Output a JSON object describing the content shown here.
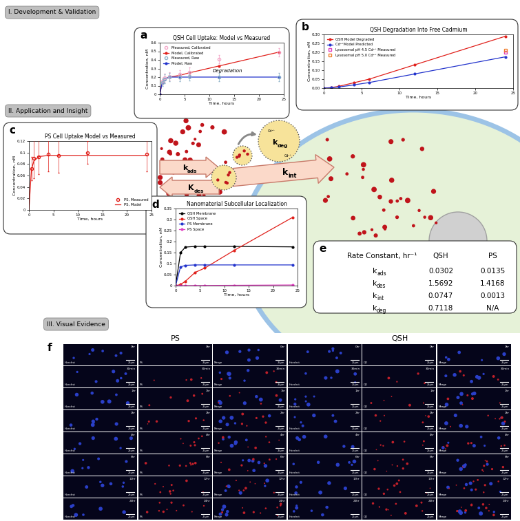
{
  "sections": [
    "I. Development & Validation",
    "II. Application and Insight",
    "III. Visual Evidence"
  ],
  "chart_data": [
    {
      "label": "a",
      "type": "line",
      "title": "QSH Cell Uptake: Model vs Measured",
      "x_label": "Time, hours",
      "y_label": "Concentration, nM",
      "xlim": [
        0,
        25
      ],
      "xticks": [
        0,
        5,
        10,
        15,
        20,
        25
      ],
      "ylim": [
        0,
        0.6
      ],
      "yticks": [
        0,
        0.1,
        0.2,
        0.3,
        0.4,
        0.5,
        0.6
      ],
      "grid": false,
      "legend": "upper left",
      "annotation": "Degradation",
      "series": [
        {
          "name": "Measured, Calibrated",
          "type": "scatter",
          "color": "#f4a6c8",
          "marker": "circle",
          "x": [
            0.5,
            1,
            2,
            4,
            6,
            12,
            24
          ],
          "values": [
            0.15,
            0.19,
            0.21,
            0.23,
            0.26,
            0.41,
            0.49
          ],
          "errors": [
            0.04,
            0.05,
            0.05,
            0.05,
            0.05,
            0.05,
            0.05
          ]
        },
        {
          "name": "Model, Calibrated",
          "type": "line",
          "color": "#e0201b",
          "marker": "circle",
          "x": [
            0,
            0.5,
            1,
            2,
            4,
            6,
            12,
            24
          ],
          "values": [
            0,
            0.14,
            0.18,
            0.2,
            0.22,
            0.25,
            0.33,
            0.49
          ]
        },
        {
          "name": "Measured, Raw",
          "type": "scatter",
          "color": "#8fb3c9",
          "marker": "circle",
          "x": [
            0.5,
            1,
            2,
            4,
            6,
            12,
            24
          ],
          "values": [
            0.14,
            0.18,
            0.2,
            0.2,
            0.21,
            0.2,
            0.2
          ],
          "errors": [
            0.04,
            0.05,
            0.05,
            0.05,
            0.05,
            0.05,
            0.05
          ]
        },
        {
          "name": "Model, Raw",
          "type": "line",
          "color": "#2233cc",
          "marker": "circle",
          "x": [
            0,
            0.5,
            1,
            2,
            4,
            6,
            12,
            24
          ],
          "values": [
            0,
            0.14,
            0.18,
            0.2,
            0.2,
            0.2,
            0.2,
            0.2
          ]
        }
      ]
    },
    {
      "label": "b",
      "type": "line",
      "title": "QSH Degradation Into Free Cadmium",
      "x_label": "Time, hours",
      "y_label": "Concentration, nM",
      "xlim": [
        0,
        25
      ],
      "xticks": [
        0,
        5,
        10,
        15,
        20,
        25
      ],
      "ylim": [
        0,
        0.3
      ],
      "yticks": [
        {
          "value": 0,
          "label": "0.00"
        },
        0.05,
        {
          "value": 0.1,
          "label": "0.10"
        },
        0.15,
        {
          "value": 0.2,
          "label": "0.20"
        },
        0.25,
        {
          "value": 0.3,
          "label": "0.30"
        }
      ],
      "grid": false,
      "legend": "upper left",
      "series": [
        {
          "name": "QSH Model Degraded",
          "type": "line",
          "color": "#e0201b",
          "marker": "circle",
          "x": [
            0,
            1,
            2,
            4,
            6,
            12,
            24
          ],
          "values": [
            0,
            0.003,
            0.01,
            0.03,
            0.05,
            0.13,
            0.29
          ]
        },
        {
          "name": "Cd²⁺Model Predicted",
          "type": "line",
          "color": "#2233cc",
          "marker": "circle",
          "x": [
            0,
            1,
            2,
            4,
            6,
            12,
            24
          ],
          "values": [
            0,
            0.002,
            0.006,
            0.018,
            0.031,
            0.079,
            0.175
          ]
        },
        {
          "name": "Lysosomal pH 4.5 Cd²⁺ Measured",
          "type": "scatter",
          "color": "#e040c0",
          "marker": "square",
          "x": [
            24
          ],
          "values": [
            0.2
          ]
        },
        {
          "name": "Lysosomal pH 5.0 Cd²⁺ Measured",
          "type": "scatter",
          "color": "#f08030",
          "marker": "square",
          "x": [
            24
          ],
          "values": [
            0.21
          ]
        }
      ]
    },
    {
      "label": "c",
      "type": "line",
      "title": "PS Cell Uptake Model vs Measured",
      "x_label": "Time, hours",
      "y_label": "Concentration, nM",
      "xlim": [
        0,
        25
      ],
      "xticks": [
        0,
        5,
        10,
        15,
        20,
        25
      ],
      "ylim": [
        0,
        0.12
      ],
      "yticks": [
        0,
        0.02,
        0.04,
        0.06,
        0.08,
        0.1,
        0.12
      ],
      "grid": false,
      "legend": "lower right",
      "series": [
        {
          "name": "PS, Measured",
          "type": "scatter",
          "color": "#e0201b",
          "marker": "circle",
          "x": [
            0.5,
            1,
            2,
            4,
            6,
            12,
            24
          ],
          "values": [
            0.072,
            0.09,
            0.093,
            0.097,
            0.095,
            0.1,
            0.097
          ],
          "errors": [
            0.02,
            0.035,
            0.03,
            0.03,
            0.03,
            0.02,
            0.03
          ]
        },
        {
          "name": "PS, Model",
          "type": "line",
          "color": "#e0201b",
          "marker": "none",
          "x": [
            0,
            0.5,
            1,
            2,
            4,
            6,
            12,
            24
          ],
          "values": [
            0,
            0.07,
            0.085,
            0.093,
            0.095,
            0.095,
            0.095,
            0.095
          ]
        }
      ]
    },
    {
      "label": "d",
      "type": "line",
      "title": "Nanomaterial Subcellular Localization",
      "x_label": "Time, hours",
      "y_label": "Concentration, nM",
      "xlim": [
        0,
        25
      ],
      "xticks": [
        0,
        5,
        10,
        15,
        20,
        25
      ],
      "ylim": [
        0,
        0.35
      ],
      "yticks": [
        0,
        0.05,
        0.1,
        0.15,
        0.2,
        0.25,
        0.3,
        0.35
      ],
      "grid": false,
      "legend": "upper left",
      "series": [
        {
          "name": "QSH Membrane",
          "type": "line",
          "color": "#000000",
          "marker": "circle",
          "x": [
            0,
            1,
            2,
            4,
            6,
            12,
            24
          ],
          "values": [
            0,
            0.15,
            0.175,
            0.178,
            0.178,
            0.178,
            0.176
          ]
        },
        {
          "name": "QSH Space",
          "type": "line",
          "color": "#e0201b",
          "marker": "circle",
          "x": [
            0,
            1,
            2,
            4,
            6,
            12,
            24
          ],
          "values": [
            0,
            0.005,
            0.02,
            0.06,
            0.08,
            0.16,
            0.31
          ]
        },
        {
          "name": "PS Membrane",
          "type": "line",
          "color": "#2233cc",
          "marker": "circle",
          "x": [
            0,
            1,
            2,
            4,
            6,
            12,
            24
          ],
          "values": [
            0,
            0.085,
            0.092,
            0.094,
            0.094,
            0.094,
            0.094
          ]
        },
        {
          "name": "PS Space",
          "type": "line",
          "color": "#e040c0",
          "marker": "circle",
          "x": [
            0,
            1,
            2,
            4,
            6,
            12,
            24
          ],
          "values": [
            0,
            0.0001,
            0.0002,
            0.0005,
            0.0008,
            0.0015,
            0.003
          ]
        }
      ]
    }
  ],
  "diagram": {
    "arrows": [
      {
        "symbol": "k",
        "sub": "ads"
      },
      {
        "symbol": "K",
        "sub": "des"
      },
      {
        "symbol": "k",
        "sub": "int"
      },
      {
        "symbol": "k",
        "sub": "deg"
      }
    ],
    "ion": "Cd²⁺"
  },
  "table": {
    "label": "e",
    "header": [
      "Rate Constant, hr⁻¹",
      "QSH",
      "PS"
    ],
    "rows": [
      {
        "symbol": "k",
        "sub": "ads",
        "values": [
          0.0302,
          0.0135
        ]
      },
      {
        "symbol": "k",
        "sub": "des",
        "values": [
          1.5692,
          1.4168
        ]
      },
      {
        "symbol": "k",
        "sub": "int",
        "values": [
          0.0747,
          0.0013
        ]
      },
      {
        "symbol": "k",
        "sub": "deg",
        "values": [
          0.7118,
          "N/A"
        ]
      }
    ]
  },
  "images": {
    "label": "f",
    "groups": [
      {
        "name": "PS",
        "channels": [
          "Hoechst",
          "PS",
          "Merge"
        ]
      },
      {
        "name": "QSH",
        "channels": [
          "Hoechst",
          "QD",
          "Merge"
        ]
      }
    ],
    "times": [
      "0hr",
      "30min",
      "1hr",
      "2hr",
      "4hr",
      "6hr",
      "12hr",
      "24hr"
    ],
    "scale_bar": "25μm"
  }
}
